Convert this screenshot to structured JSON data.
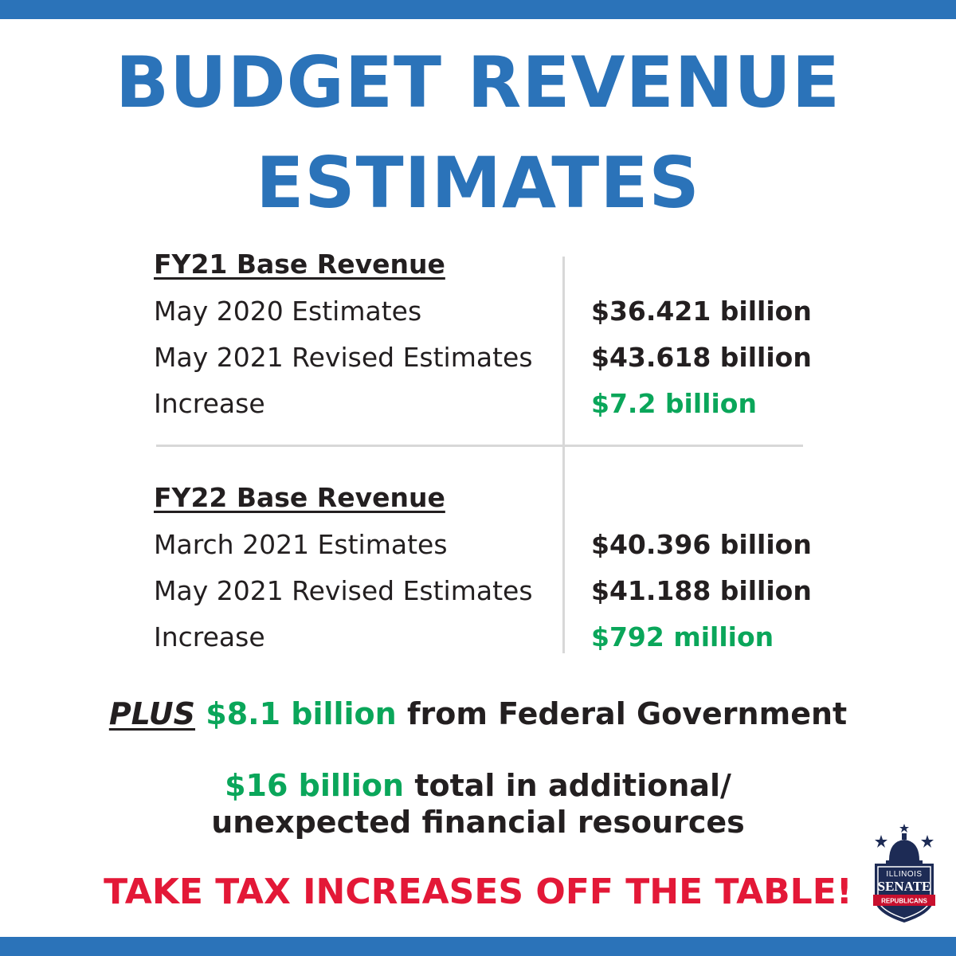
{
  "colors": {
    "accent_blue": "#2b73b9",
    "green": "#0aa65a",
    "red": "#e31837",
    "text": "#231f20",
    "divider": "#d8d8d8"
  },
  "title": {
    "line1": "BUDGET REVENUE",
    "line2": "ESTIMATES"
  },
  "fy21": {
    "heading": "FY21 Base Revenue",
    "rows": [
      {
        "label": "May 2020 Estimates",
        "value": "$36.421 billion"
      },
      {
        "label": "May 2021 Revised Estimates",
        "value": "$43.618 billion"
      },
      {
        "label": "Increase",
        "value": "$7.2 billion"
      }
    ]
  },
  "fy22": {
    "heading": "FY22 Base Revenue",
    "rows": [
      {
        "label": "March 2021 Estimates",
        "value": "$40.396 billion"
      },
      {
        "label": "May 2021 Revised Estimates",
        "value": "$41.188 billion"
      },
      {
        "label": "Increase",
        "value": "$792 million"
      }
    ]
  },
  "plus_line": {
    "plus": "PLUS",
    "amount": "$8.1 billion",
    "rest": "from Federal Government"
  },
  "total_line": {
    "amount": "$16 billion",
    "rest1": "total in additional/",
    "line2": "unexpected financial resources"
  },
  "cta": "TAKE TAX INCREASES OFF THE TABLE!",
  "logo": {
    "top_text": "ILLINOIS",
    "main_text": "SENATE",
    "ribbon_text": "REPUBLICANS",
    "icon": "capitol-dome-shield-icon"
  }
}
